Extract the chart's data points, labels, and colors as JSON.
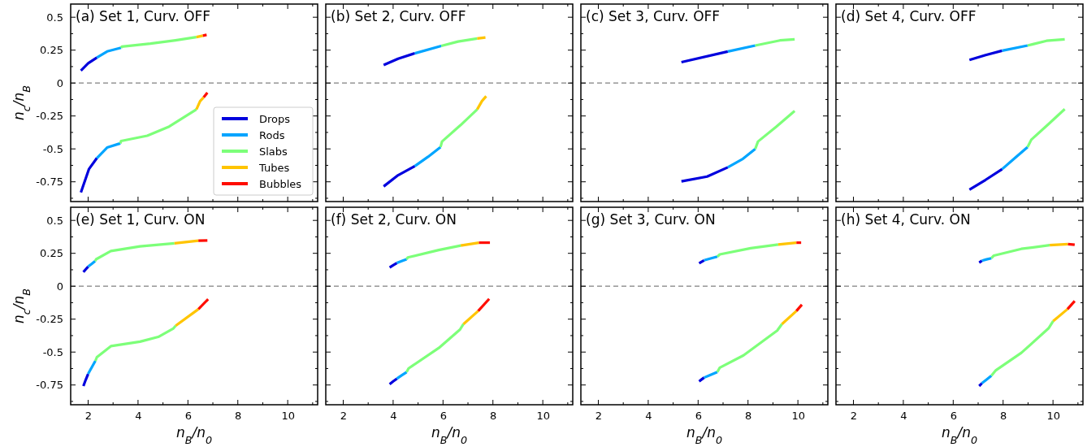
{
  "chart_data": [
    {
      "type": "line",
      "title": "(a) Set 1, Curv. OFF",
      "ylabel": "n$_{c}$/n$_{B}$",
      "xlim": [
        1.3,
        11.2
      ],
      "ylim": [
        -0.9,
        0.6
      ],
      "xticks": [
        2,
        {
          "value": 3,
          "label": null
        },
        4,
        {
          "value": 5,
          "label": null
        },
        6,
        {
          "value": 7,
          "label": null
        },
        8,
        {
          "value": 9,
          "label": null
        },
        10,
        {
          "value": 11,
          "label": null
        }
      ],
      "yticks": [
        {
          "value": -0.875,
          "label": null
        },
        -0.75,
        {
          "value": -0.625,
          "label": null
        },
        -0.5,
        {
          "value": -0.375,
          "label": null
        },
        -0.25,
        {
          "value": -0.125,
          "label": null
        },
        0,
        {
          "value": 0.125,
          "label": null
        },
        0.25,
        {
          "value": 0.375,
          "label": null
        },
        0.5
      ],
      "tick_labels": "y",
      "legend": "bottom right",
      "line_style": "solid",
      "ref_lines": [
        {
          "axis": "y",
          "value": 0,
          "color": "#808080",
          "line_style": "dashed"
        }
      ],
      "series": [
        {
          "name": "Drops",
          "color": "#0000dd",
          "x": [
            1.71,
            2.0,
            2.35
          ],
          "values": [
            0.095,
            0.15,
            0.193
          ]
        },
        {
          "color": "#0000de",
          "x": [
            1.71,
            2.03,
            2.35
          ],
          "values": [
            -0.83,
            -0.654,
            -0.57
          ]
        },
        {
          "name": "Rods",
          "color": "#00a4ff",
          "x": [
            2.35,
            2.76,
            3.32
          ],
          "values": [
            0.193,
            0.24,
            0.268
          ]
        },
        {
          "color": "#00a5ff",
          "x": [
            2.35,
            2.76,
            3.29
          ],
          "values": [
            -0.57,
            -0.49,
            -0.458
          ]
        },
        {
          "name": "Slabs",
          "color": "#7cff79",
          "x": [
            3.32,
            3.35,
            4.5,
            5.5,
            6.34
          ],
          "values": [
            0.268,
            0.277,
            0.3,
            0.325,
            0.349
          ]
        },
        {
          "color": "#7dff79",
          "x": [
            3.29,
            3.32,
            4.37,
            5.25,
            6.34
          ],
          "values": [
            -0.458,
            -0.44,
            -0.4,
            -0.33,
            -0.2
          ]
        },
        {
          "name": "Tubes",
          "color": "#ffc400",
          "x": [
            6.34,
            6.6
          ],
          "values": [
            0.349,
            0.36
          ]
        },
        {
          "color": "#ffc500",
          "x": [
            6.34,
            6.49,
            6.63
          ],
          "values": [
            -0.2,
            -0.137,
            -0.109
          ]
        },
        {
          "name": "Bubbles",
          "color": "#ff0d00",
          "x": [
            6.6,
            6.75
          ],
          "values": [
            0.36,
            0.366
          ]
        },
        {
          "color": "#ff0e00",
          "x": [
            6.63,
            6.78
          ],
          "values": [
            -0.109,
            -0.073
          ]
        }
      ]
    },
    {
      "type": "line",
      "title": "(b) Set 2, Curv. OFF",
      "xlim": [
        1.3,
        11.2
      ],
      "ylim": [
        -0.9,
        0.6
      ],
      "xticks": [
        2,
        {
          "value": 3,
          "label": null
        },
        4,
        {
          "value": 5,
          "label": null
        },
        6,
        {
          "value": 7,
          "label": null
        },
        8,
        {
          "value": 9,
          "label": null
        },
        10,
        {
          "value": 11,
          "label": null
        }
      ],
      "yticks": [
        {
          "value": -0.875,
          "label": null
        },
        -0.75,
        {
          "value": -0.625,
          "label": null
        },
        -0.5,
        {
          "value": -0.375,
          "label": null
        },
        -0.25,
        {
          "value": -0.125,
          "label": null
        },
        0,
        {
          "value": 0.125,
          "label": null
        },
        0.25,
        {
          "value": 0.375,
          "label": null
        },
        0.5
      ],
      "tick_labels": false,
      "line_style": "solid",
      "ref_lines": [
        {
          "axis": "y",
          "value": 0,
          "color": "#808080",
          "line_style": "dashed"
        }
      ],
      "series": [
        {
          "color": "#0000dd",
          "x": [
            3.62,
            4.2,
            4.87
          ],
          "values": [
            0.137,
            0.185,
            0.226
          ]
        },
        {
          "color": "#0000de",
          "x": [
            3.62,
            4.2,
            4.87
          ],
          "values": [
            -0.785,
            -0.7,
            -0.631
          ]
        },
        {
          "color": "#00a4ff",
          "x": [
            4.87,
            5.93
          ],
          "values": [
            0.226,
            0.282
          ]
        },
        {
          "color": "#00a5ff",
          "x": [
            4.87,
            5.4,
            5.9
          ],
          "values": [
            -0.631,
            -0.56,
            -0.486
          ]
        },
        {
          "color": "#7cff79",
          "x": [
            5.93,
            6.6,
            7.37
          ],
          "values": [
            0.282,
            0.315,
            0.338
          ]
        },
        {
          "color": "#7dff79",
          "x": [
            5.9,
            5.96,
            6.7,
            7.37
          ],
          "values": [
            -0.486,
            -0.444,
            -0.32,
            -0.2
          ]
        },
        {
          "color": "#ffc400",
          "x": [
            7.37,
            7.7
          ],
          "values": [
            0.338,
            0.346
          ]
        },
        {
          "color": "#ffc500",
          "x": [
            7.37,
            7.56,
            7.73
          ],
          "values": [
            -0.2,
            -0.137,
            -0.1
          ]
        }
      ]
    },
    {
      "type": "line",
      "title": "(c) Set 3, Curv. OFF",
      "xlim": [
        1.3,
        11.2
      ],
      "ylim": [
        -0.9,
        0.6
      ],
      "xticks": [
        2,
        {
          "value": 3,
          "label": null
        },
        4,
        {
          "value": 5,
          "label": null
        },
        6,
        {
          "value": 7,
          "label": null
        },
        8,
        {
          "value": 9,
          "label": null
        },
        10,
        {
          "value": 11,
          "label": null
        }
      ],
      "yticks": [
        {
          "value": -0.875,
          "label": null
        },
        -0.75,
        {
          "value": -0.625,
          "label": null
        },
        -0.5,
        {
          "value": -0.375,
          "label": null
        },
        -0.25,
        {
          "value": -0.125,
          "label": null
        },
        0,
        {
          "value": 0.125,
          "label": null
        },
        0.25,
        {
          "value": 0.375,
          "label": null
        },
        0.5
      ],
      "tick_labels": false,
      "line_style": "solid",
      "ref_lines": [
        {
          "axis": "y",
          "value": 0,
          "color": "#808080",
          "line_style": "dashed"
        }
      ],
      "series": [
        {
          "color": "#0000dd",
          "x": [
            5.33,
            7.19
          ],
          "values": [
            0.159,
            0.24
          ]
        },
        {
          "color": "#0000de",
          "x": [
            5.33,
            6.36,
            7.19
          ],
          "values": [
            -0.746,
            -0.71,
            -0.64
          ]
        },
        {
          "color": "#00a4ff",
          "x": [
            7.19,
            8.29
          ],
          "values": [
            0.24,
            0.285
          ]
        },
        {
          "color": "#00a5ff",
          "x": [
            7.19,
            7.8,
            8.29
          ],
          "values": [
            -0.64,
            -0.575,
            -0.5
          ]
        },
        {
          "color": "#7cff79",
          "x": [
            8.29,
            9.28,
            9.87
          ],
          "values": [
            0.285,
            0.324,
            0.332
          ]
        },
        {
          "color": "#7dff79",
          "x": [
            8.29,
            8.4,
            9.13,
            9.87
          ],
          "values": [
            -0.5,
            -0.444,
            -0.332,
            -0.212
          ]
        }
      ]
    },
    {
      "type": "line",
      "title": "(d) Set 4, Curv. OFF",
      "xlim": [
        1.3,
        11.2
      ],
      "ylim": [
        -0.9,
        0.6
      ],
      "xticks": [
        2,
        {
          "value": 3,
          "label": null
        },
        4,
        {
          "value": 5,
          "label": null
        },
        6,
        {
          "value": 7,
          "label": null
        },
        8,
        {
          "value": 9,
          "label": null
        },
        10,
        {
          "value": 11,
          "label": null
        }
      ],
      "yticks": [
        {
          "value": -0.875,
          "label": null
        },
        -0.75,
        {
          "value": -0.625,
          "label": null
        },
        -0.5,
        {
          "value": -0.375,
          "label": null
        },
        -0.25,
        {
          "value": -0.125,
          "label": null
        },
        0,
        {
          "value": 0.125,
          "label": null
        },
        0.25,
        {
          "value": 0.375,
          "label": null
        },
        0.5
      ],
      "tick_labels": false,
      "line_style": "solid",
      "ref_lines": [
        {
          "axis": "y",
          "value": 0,
          "color": "#808080",
          "line_style": "dashed"
        }
      ],
      "series": [
        {
          "color": "#0000dd",
          "x": [
            6.65,
            7.3,
            7.96
          ],
          "values": [
            0.176,
            0.213,
            0.246
          ]
        },
        {
          "color": "#0000de",
          "x": [
            6.65,
            7.3,
            7.96
          ],
          "values": [
            -0.81,
            -0.735,
            -0.654
          ]
        },
        {
          "color": "#00a4ff",
          "x": [
            7.96,
            8.98
          ],
          "values": [
            0.246,
            0.285
          ]
        },
        {
          "color": "#00a5ff",
          "x": [
            7.96,
            8.47,
            8.98
          ],
          "values": [
            -0.654,
            -0.57,
            -0.486
          ]
        },
        {
          "color": "#7cff79",
          "x": [
            8.98,
            9.74,
            10.47
          ],
          "values": [
            0.285,
            0.321,
            0.332
          ]
        },
        {
          "color": "#7dff79",
          "x": [
            8.98,
            9.13,
            9.8,
            10.47
          ],
          "values": [
            -0.486,
            -0.43,
            -0.315,
            -0.198
          ]
        }
      ]
    },
    {
      "type": "line",
      "title": "(e) Set 1, Curv. ON",
      "xlabel": "n$_{B}$/n$_{0}$",
      "ylabel": "n$_{c}$/n$_{B}$",
      "xlim": [
        1.3,
        11.2
      ],
      "ylim": [
        -0.9,
        0.6
      ],
      "xticks": [
        2,
        {
          "value": 3,
          "label": null
        },
        4,
        {
          "value": 5,
          "label": null
        },
        6,
        {
          "value": 7,
          "label": null
        },
        8,
        {
          "value": 9,
          "label": null
        },
        10,
        {
          "value": 11,
          "label": null
        }
      ],
      "yticks": [
        {
          "value": -0.875,
          "label": null
        },
        -0.75,
        {
          "value": -0.625,
          "label": null
        },
        -0.5,
        {
          "value": -0.375,
          "label": null
        },
        -0.25,
        {
          "value": -0.125,
          "label": null
        },
        0,
        {
          "value": 0.125,
          "label": null
        },
        0.25,
        {
          "value": 0.375,
          "label": null
        },
        0.5
      ],
      "line_style": "solid",
      "ref_lines": [
        {
          "axis": "y",
          "value": 0,
          "color": "#808080",
          "line_style": "dashed"
        }
      ],
      "series": [
        {
          "color": "#0000dd",
          "x": [
            1.81,
            1.9,
            2.0
          ],
          "values": [
            0.107,
            0.128,
            0.149
          ]
        },
        {
          "color": "#0000de",
          "x": [
            1.81,
            1.9,
            2.0
          ],
          "values": [
            -0.758,
            -0.712,
            -0.666
          ]
        },
        {
          "color": "#00a4ff",
          "x": [
            2.0,
            2.14,
            2.28
          ],
          "values": [
            0.149,
            0.17,
            0.191
          ]
        },
        {
          "color": "#00a5ff",
          "x": [
            2.0,
            2.14,
            2.29
          ],
          "values": [
            -0.666,
            -0.617,
            -0.567
          ]
        },
        {
          "color": "#7cff79",
          "x": [
            2.28,
            2.32,
            2.91,
            4.08,
            5.46
          ],
          "values": [
            0.191,
            0.205,
            0.267,
            0.303,
            0.326
          ]
        },
        {
          "color": "#7dff79",
          "x": [
            2.29,
            2.35,
            2.91,
            4.08,
            4.81,
            5.42,
            5.51
          ],
          "values": [
            -0.567,
            -0.539,
            -0.455,
            -0.421,
            -0.385,
            -0.32,
            -0.3
          ]
        },
        {
          "color": "#ffc400",
          "x": [
            5.46,
            6.42
          ],
          "values": [
            0.326,
            0.346
          ]
        },
        {
          "color": "#ffc500",
          "x": [
            5.51,
            6.42
          ],
          "values": [
            -0.3,
            -0.174
          ]
        },
        {
          "color": "#ff0d00",
          "x": [
            6.42,
            6.78
          ],
          "values": [
            0.346,
            0.348
          ]
        },
        {
          "color": "#ff0e00",
          "x": [
            6.42,
            6.81
          ],
          "values": [
            -0.174,
            -0.098
          ]
        }
      ]
    },
    {
      "type": "line",
      "title": "(f) Set 2, Curv. ON",
      "xlabel": "n$_{B}$/n$_{0}$",
      "xlim": [
        1.3,
        11.2
      ],
      "ylim": [
        -0.9,
        0.6
      ],
      "xticks": [
        2,
        {
          "value": 3,
          "label": null
        },
        4,
        {
          "value": 5,
          "label": null
        },
        6,
        {
          "value": 7,
          "label": null
        },
        8,
        {
          "value": 9,
          "label": null
        },
        10,
        {
          "value": 11,
          "label": null
        }
      ],
      "yticks": [
        {
          "value": -0.875,
          "label": null
        },
        -0.75,
        {
          "value": -0.625,
          "label": null
        },
        -0.5,
        {
          "value": -0.375,
          "label": null
        },
        -0.25,
        {
          "value": -0.125,
          "label": null
        },
        0,
        {
          "value": 0.125,
          "label": null
        },
        0.25,
        {
          "value": 0.375,
          "label": null
        },
        0.5
      ],
      "tick_labels": "x",
      "line_style": "solid",
      "ref_lines": [
        {
          "axis": "y",
          "value": 0,
          "color": "#808080",
          "line_style": "dashed"
        }
      ],
      "series": [
        {
          "color": "#0000dd",
          "x": [
            3.86,
            4.0,
            4.15
          ],
          "values": [
            0.143,
            0.16,
            0.177
          ]
        },
        {
          "color": "#0000de",
          "x": [
            3.86,
            4.0,
            4.15
          ],
          "values": [
            -0.744,
            -0.723,
            -0.702
          ]
        },
        {
          "color": "#00a4ff",
          "x": [
            4.15,
            4.34,
            4.54
          ],
          "values": [
            0.177,
            0.191,
            0.205
          ]
        },
        {
          "color": "#00a5ff",
          "x": [
            4.15,
            4.34,
            4.54
          ],
          "values": [
            -0.702,
            -0.677,
            -0.652
          ]
        },
        {
          "color": "#7cff79",
          "x": [
            4.54,
            4.59,
            5.83,
            6.71
          ],
          "values": [
            0.205,
            0.219,
            0.275,
            0.309
          ]
        },
        {
          "color": "#7dff79",
          "x": [
            4.54,
            4.62,
            5.83,
            6.68,
            6.82
          ],
          "values": [
            -0.652,
            -0.624,
            -0.469,
            -0.329,
            -0.287
          ]
        },
        {
          "color": "#ffc400",
          "x": [
            6.71,
            7.44
          ],
          "values": [
            0.309,
            0.331
          ]
        },
        {
          "color": "#ffc500",
          "x": [
            6.82,
            7.41
          ],
          "values": [
            -0.287,
            -0.188
          ]
        },
        {
          "color": "#ff0d00",
          "x": [
            7.44,
            7.88
          ],
          "values": [
            0.331,
            0.331
          ]
        },
        {
          "color": "#ff0e00",
          "x": [
            7.41,
            7.85
          ],
          "values": [
            -0.188,
            -0.096
          ]
        }
      ]
    },
    {
      "type": "line",
      "title": "(g) Set 3, Curv. ON",
      "xlabel": "n$_{B}$/n$_{0}$",
      "xlim": [
        1.3,
        11.2
      ],
      "ylim": [
        -0.9,
        0.6
      ],
      "xticks": [
        2,
        {
          "value": 3,
          "label": null
        },
        4,
        {
          "value": 5,
          "label": null
        },
        6,
        {
          "value": 7,
          "label": null
        },
        8,
        {
          "value": 9,
          "label": null
        },
        10,
        {
          "value": 11,
          "label": null
        }
      ],
      "yticks": [
        {
          "value": -0.875,
          "label": null
        },
        -0.75,
        {
          "value": -0.625,
          "label": null
        },
        -0.5,
        {
          "value": -0.375,
          "label": null
        },
        -0.25,
        {
          "value": -0.125,
          "label": null
        },
        0,
        {
          "value": 0.125,
          "label": null
        },
        0.25,
        {
          "value": 0.375,
          "label": null
        },
        0.5
      ],
      "tick_labels": "x",
      "line_style": "solid",
      "ref_lines": [
        {
          "axis": "y",
          "value": 0,
          "color": "#808080",
          "line_style": "dashed"
        }
      ],
      "series": [
        {
          "color": "#0000dd",
          "x": [
            6.04,
            6.14,
            6.24
          ],
          "values": [
            0.174,
            0.186,
            0.197
          ]
        },
        {
          "color": "#0000de",
          "x": [
            6.04,
            6.14,
            6.24
          ],
          "values": [
            -0.722,
            -0.708,
            -0.694
          ]
        },
        {
          "color": "#00a4ff",
          "x": [
            6.24,
            6.5,
            6.77
          ],
          "values": [
            0.197,
            0.211,
            0.225
          ]
        },
        {
          "color": "#00a5ff",
          "x": [
            6.24,
            6.5,
            6.77
          ],
          "values": [
            -0.694,
            -0.673,
            -0.652
          ]
        },
        {
          "color": "#7cff79",
          "x": [
            6.77,
            6.87,
            8.11,
            9.21
          ],
          "values": [
            0.225,
            0.242,
            0.289,
            0.317
          ]
        },
        {
          "color": "#7dff79",
          "x": [
            6.77,
            6.87,
            7.82,
            9.17,
            9.36
          ],
          "values": [
            -0.652,
            -0.618,
            -0.525,
            -0.337,
            -0.287
          ]
        },
        {
          "color": "#ffc400",
          "x": [
            9.21,
            9.94
          ],
          "values": [
            0.317,
            0.331
          ]
        },
        {
          "color": "#ffc500",
          "x": [
            9.36,
            9.94
          ],
          "values": [
            -0.287,
            -0.188
          ]
        },
        {
          "color": "#ff0d00",
          "x": [
            9.94,
            10.13
          ],
          "values": [
            0.331,
            0.331
          ]
        },
        {
          "color": "#ff0e00",
          "x": [
            9.94,
            10.16
          ],
          "values": [
            -0.188,
            -0.14
          ]
        }
      ]
    },
    {
      "type": "line",
      "title": "(h) Set 4, Curv. ON",
      "xlabel": "n$_{B}$/n$_{0}$",
      "xlim": [
        1.3,
        11.2
      ],
      "ylim": [
        -0.9,
        0.6
      ],
      "xticks": [
        2,
        {
          "value": 3,
          "label": null
        },
        4,
        {
          "value": 5,
          "label": null
        },
        6,
        {
          "value": 7,
          "label": null
        },
        8,
        {
          "value": 9,
          "label": null
        },
        10,
        {
          "value": 11,
          "label": null
        }
      ],
      "yticks": [
        {
          "value": -0.875,
          "label": null
        },
        -0.75,
        {
          "value": -0.625,
          "label": null
        },
        -0.5,
        {
          "value": -0.375,
          "label": null
        },
        -0.25,
        {
          "value": -0.125,
          "label": null
        },
        0,
        {
          "value": 0.125,
          "label": null
        },
        0.25,
        {
          "value": 0.375,
          "label": null
        },
        0.5
      ],
      "tick_labels": "x",
      "line_style": "solid",
      "ref_lines": [
        {
          "axis": "y",
          "value": 0,
          "color": "#808080",
          "line_style": "dashed"
        }
      ],
      "series": [
        {
          "color": "#0000dd",
          "x": [
            7.04,
            7.1,
            7.15
          ],
          "values": [
            0.18,
            0.187,
            0.194
          ]
        },
        {
          "color": "#0000de",
          "x": [
            7.04,
            7.1,
            7.15
          ],
          "values": [
            -0.758,
            -0.747,
            -0.736
          ]
        },
        {
          "color": "#00a4ff",
          "x": [
            7.15,
            7.34,
            7.53
          ],
          "values": [
            0.194,
            0.204,
            0.213
          ]
        },
        {
          "color": "#00a5ff",
          "x": [
            7.15,
            7.34,
            7.53
          ],
          "values": [
            -0.736,
            -0.708,
            -0.68
          ]
        },
        {
          "color": "#7cff79",
          "x": [
            7.53,
            7.63,
            8.73,
            9.87
          ],
          "values": [
            0.213,
            0.233,
            0.284,
            0.312
          ]
        },
        {
          "color": "#7dff79",
          "x": [
            7.53,
            7.71,
            8.73,
            9.82,
            10.01
          ],
          "values": [
            -0.68,
            -0.638,
            -0.506,
            -0.32,
            -0.264
          ]
        },
        {
          "color": "#ffc400",
          "x": [
            9.87,
            10.6
          ],
          "values": [
            0.312,
            0.32
          ]
        },
        {
          "color": "#ffc500",
          "x": [
            10.01,
            10.58
          ],
          "values": [
            -0.264,
            -0.174
          ]
        },
        {
          "color": "#ff0d00",
          "x": [
            10.6,
            10.87
          ],
          "values": [
            0.32,
            0.315
          ]
        },
        {
          "color": "#ff0e00",
          "x": [
            10.58,
            10.87
          ],
          "values": [
            -0.174,
            -0.112
          ]
        }
      ]
    }
  ]
}
